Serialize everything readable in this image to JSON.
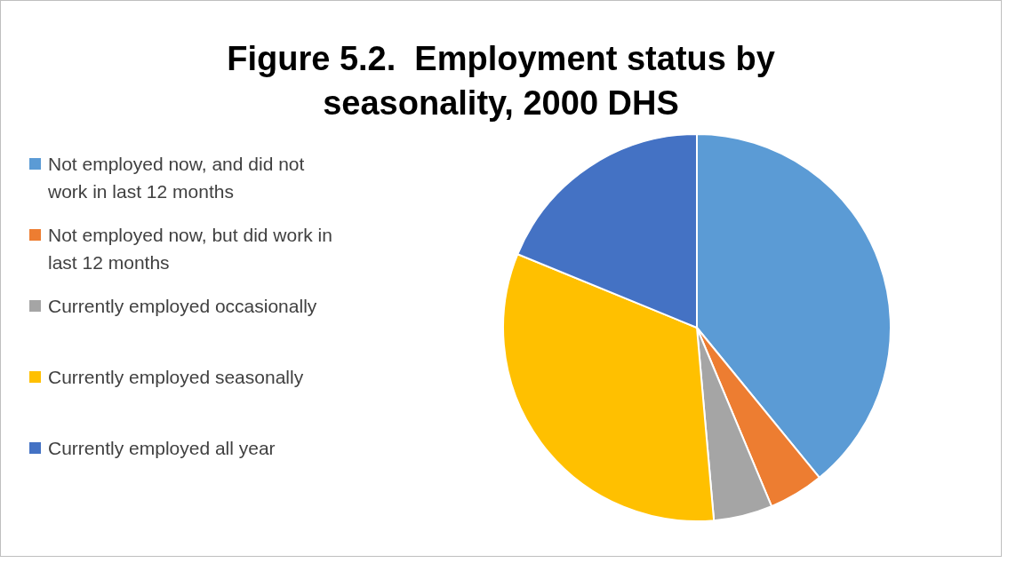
{
  "chart_data": {
    "type": "pie",
    "title": "Figure 5.2.  Employment status by seasonality, 2000 DHS",
    "categories": [
      "Not employed now, and did not work in last 12 months",
      "Not employed now, but did work in last 12 months",
      "Currently employed occasionally",
      "Currently employed seasonally",
      "Currently employed all year"
    ],
    "values": [
      39.1,
      4.6,
      4.9,
      32.6,
      18.8
    ],
    "colors": [
      "#5b9bd5",
      "#ed7d31",
      "#a5a5a5",
      "#ffc000",
      "#4472c4"
    ],
    "legend": "left"
  }
}
